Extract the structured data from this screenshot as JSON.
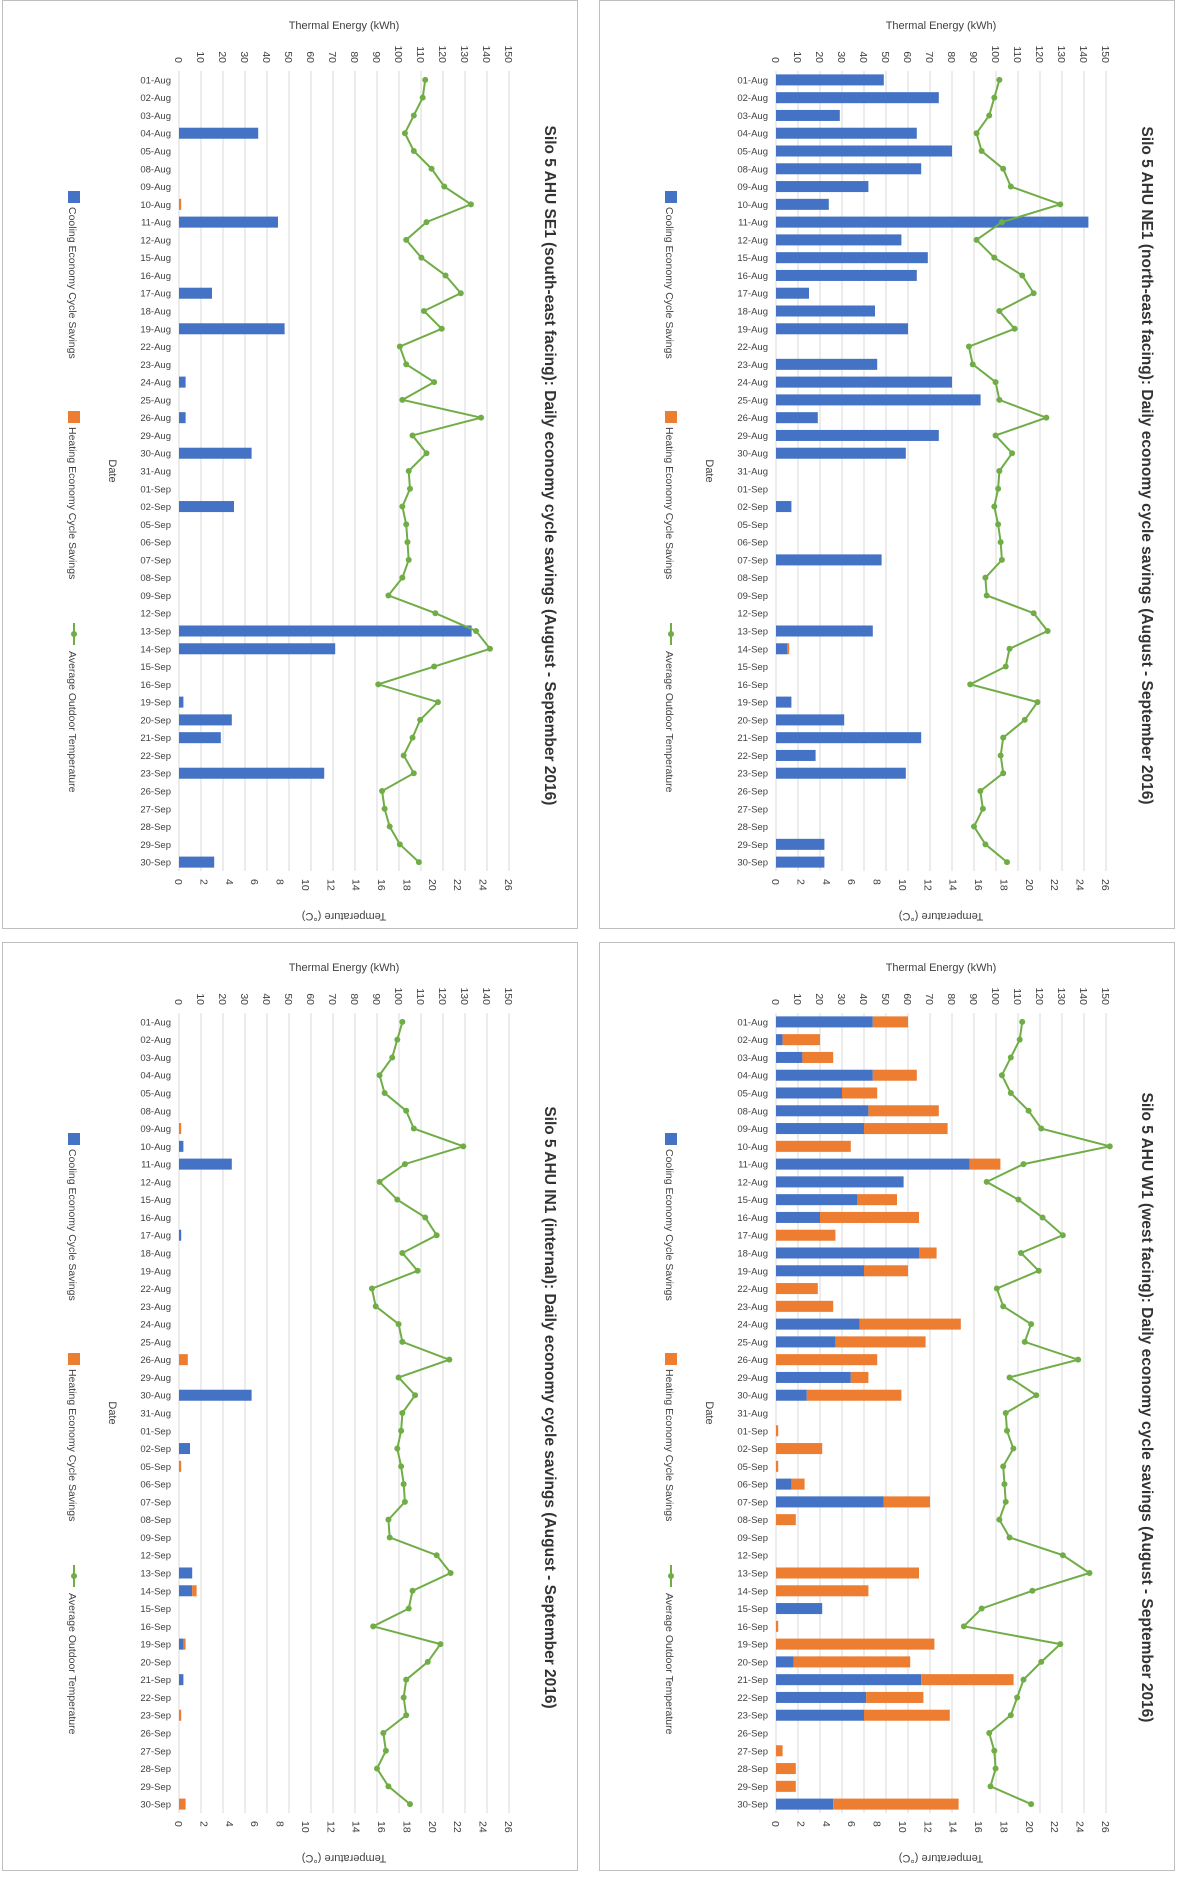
{
  "page": {
    "background": "#ffffff"
  },
  "colors": {
    "cooling": "#4472c4",
    "heating": "#ed7d31",
    "temperature": "#70ad47",
    "grid": "#d9d9d9",
    "text": "#404040"
  },
  "chart_data": [
    {
      "id": "in1",
      "type": "bar",
      "title": "Silo 5 AHU IN1 (internal): Daily economy cycle savings (August - September 2016)",
      "xlabel": "Date",
      "ylabel": "Thermal Energy (kWh)",
      "y2label": "Temperature (°C)",
      "ylim": [
        0,
        150
      ],
      "yticks": [
        "0",
        "10",
        "20",
        "30",
        "40",
        "50",
        "60",
        "70",
        "80",
        "90",
        "100",
        "110",
        "120",
        "130",
        "140",
        "150"
      ],
      "y2lim": [
        0,
        26
      ],
      "y2ticks": [
        "0",
        "2",
        "4",
        "6",
        "8",
        "10",
        "12",
        "14",
        "16",
        "18",
        "20",
        "22",
        "24",
        "26"
      ],
      "grid": true,
      "legend_position": "bottom",
      "categories": [
        "01-Aug",
        "02-Aug",
        "03-Aug",
        "04-Aug",
        "05-Aug",
        "08-Aug",
        "09-Aug",
        "10-Aug",
        "11-Aug",
        "12-Aug",
        "15-Aug",
        "16-Aug",
        "17-Aug",
        "18-Aug",
        "19-Aug",
        "22-Aug",
        "23-Aug",
        "24-Aug",
        "25-Aug",
        "26-Aug",
        "29-Aug",
        "30-Aug",
        "31-Aug",
        "01-Sep",
        "02-Sep",
        "05-Sep",
        "06-Sep",
        "07-Sep",
        "08-Sep",
        "09-Sep",
        "12-Sep",
        "13-Sep",
        "14-Sep",
        "15-Sep",
        "16-Sep",
        "19-Sep",
        "20-Sep",
        "21-Sep",
        "22-Sep",
        "23-Sep",
        "26-Sep",
        "27-Sep",
        "28-Sep",
        "29-Sep",
        "30-Sep"
      ],
      "series": [
        {
          "name": "Cooling Economy Cycle Savings",
          "kind": "bar",
          "values": [
            0,
            0,
            0,
            0,
            0,
            0,
            0,
            2,
            24,
            0,
            0,
            0,
            1,
            0,
            0,
            0,
            0,
            0,
            0,
            0,
            0,
            33,
            0,
            0,
            5,
            0,
            0,
            0,
            0,
            0,
            0,
            6,
            6,
            0,
            0,
            2,
            0,
            2,
            0,
            0,
            0,
            0,
            0,
            0,
            0
          ]
        },
        {
          "name": "Heating Economy Cycle Savings",
          "kind": "bar",
          "values": [
            0,
            0,
            0,
            0,
            0,
            0,
            1,
            0,
            0,
            0,
            0,
            0,
            0,
            0,
            0,
            0,
            0,
            0,
            0,
            4,
            0,
            0,
            0,
            0,
            0,
            1,
            0,
            0,
            0,
            0,
            0,
            0,
            2,
            0,
            0,
            1,
            0,
            0,
            0,
            1,
            0,
            0,
            0,
            0,
            3
          ]
        },
        {
          "name": "Average Outdoor Temperature",
          "kind": "line",
          "axis": "secondary",
          "values": [
            17.6,
            17.2,
            16.8,
            15.8,
            16.2,
            17.9,
            18.5,
            22.4,
            17.8,
            15.8,
            17.2,
            19.4,
            20.3,
            17.6,
            18.8,
            15.2,
            15.5,
            17.3,
            17.6,
            21.3,
            17.3,
            18.6,
            17.6,
            17.5,
            17.2,
            17.5,
            17.7,
            17.8,
            16.5,
            16.6,
            20.3,
            21.4,
            18.4,
            18.1,
            15.3,
            20.6,
            19.6,
            17.9,
            17.7,
            17.9,
            16.1,
            16.3,
            15.6,
            16.5,
            18.2
          ]
        }
      ]
    },
    {
      "id": "ne1",
      "type": "bar",
      "title": "Silo 5 AHU NE1 (north-east facing): Daily economy cycle savings (August - September 2016)",
      "xlabel": "Date",
      "ylabel": "Thermal Energy (kWh)",
      "y2label": "Temperature (°C)",
      "ylim": [
        0,
        150
      ],
      "yticks": [
        "0",
        "10",
        "20",
        "30",
        "40",
        "50",
        "60",
        "70",
        "80",
        "90",
        "100",
        "110",
        "120",
        "130",
        "140",
        "150"
      ],
      "y2lim": [
        0,
        26
      ],
      "y2ticks": [
        "0",
        "2",
        "4",
        "6",
        "8",
        "10",
        "12",
        "14",
        "16",
        "18",
        "20",
        "22",
        "24",
        "26"
      ],
      "grid": true,
      "legend_position": "bottom",
      "categories": [
        "01-Aug",
        "02-Aug",
        "03-Aug",
        "04-Aug",
        "05-Aug",
        "08-Aug",
        "09-Aug",
        "10-Aug",
        "11-Aug",
        "12-Aug",
        "15-Aug",
        "16-Aug",
        "17-Aug",
        "18-Aug",
        "19-Aug",
        "22-Aug",
        "23-Aug",
        "24-Aug",
        "25-Aug",
        "26-Aug",
        "29-Aug",
        "30-Aug",
        "31-Aug",
        "01-Sep",
        "02-Sep",
        "05-Sep",
        "06-Sep",
        "07-Sep",
        "08-Sep",
        "09-Sep",
        "12-Sep",
        "13-Sep",
        "14-Sep",
        "15-Sep",
        "16-Sep",
        "19-Sep",
        "20-Sep",
        "21-Sep",
        "22-Sep",
        "23-Sep",
        "26-Sep",
        "27-Sep",
        "28-Sep",
        "29-Sep",
        "30-Sep"
      ],
      "series": [
        {
          "name": "Cooling Economy Cycle Savings",
          "kind": "bar",
          "values": [
            49,
            74,
            29,
            64,
            80,
            66,
            42,
            24,
            142,
            57,
            69,
            64,
            15,
            45,
            60,
            0,
            46,
            80,
            93,
            19,
            74,
            59,
            0,
            0,
            7,
            0,
            0,
            48,
            0,
            0,
            0,
            44,
            5,
            0,
            0,
            7,
            31,
            66,
            18,
            59,
            0,
            0,
            0,
            22,
            22
          ]
        },
        {
          "name": "Heating Economy Cycle Savings",
          "kind": "bar",
          "values": [
            0,
            0,
            0,
            0,
            0,
            0,
            0,
            0,
            0,
            0,
            0,
            0,
            0,
            0,
            0,
            0,
            0,
            0,
            0,
            0,
            0,
            0,
            0,
            0,
            0,
            0,
            0,
            0,
            0,
            0,
            0,
            0,
            1,
            0,
            0,
            0,
            0,
            0,
            0,
            0,
            0,
            0,
            0,
            0,
            0
          ]
        },
        {
          "name": "Average Outdoor Temperature",
          "kind": "line",
          "axis": "secondary",
          "values": [
            17.6,
            17.2,
            16.8,
            15.8,
            16.2,
            17.9,
            18.5,
            22.4,
            17.8,
            15.8,
            17.2,
            19.4,
            20.3,
            17.6,
            18.8,
            15.2,
            15.5,
            17.3,
            17.6,
            21.3,
            17.3,
            18.6,
            17.6,
            17.5,
            17.2,
            17.5,
            17.7,
            17.8,
            16.5,
            16.6,
            20.3,
            21.4,
            18.4,
            18.1,
            15.3,
            20.6,
            19.6,
            17.9,
            17.7,
            17.9,
            16.1,
            16.3,
            15.6,
            16.5,
            18.2
          ]
        }
      ]
    },
    {
      "id": "w1",
      "type": "bar",
      "title": "Silo 5 AHU W1 (west facing): Daily economy cycle savings (August - September 2016)",
      "xlabel": "Date",
      "ylabel": "Thermal Energy (kWh)",
      "y2label": "Temperature (°C)",
      "ylim": [
        0,
        150
      ],
      "yticks": [
        "0",
        "10",
        "20",
        "30",
        "40",
        "50",
        "60",
        "70",
        "80",
        "90",
        "100",
        "110",
        "120",
        "130",
        "140",
        "150"
      ],
      "y2lim": [
        0,
        26
      ],
      "y2ticks": [
        "0",
        "2",
        "4",
        "6",
        "8",
        "10",
        "12",
        "14",
        "16",
        "18",
        "20",
        "22",
        "24",
        "26"
      ],
      "grid": true,
      "legend_position": "bottom",
      "categories": [
        "01-Aug",
        "02-Aug",
        "03-Aug",
        "04-Aug",
        "05-Aug",
        "08-Aug",
        "09-Aug",
        "10-Aug",
        "11-Aug",
        "12-Aug",
        "15-Aug",
        "16-Aug",
        "17-Aug",
        "18-Aug",
        "19-Aug",
        "22-Aug",
        "23-Aug",
        "24-Aug",
        "25-Aug",
        "26-Aug",
        "29-Aug",
        "30-Aug",
        "31-Aug",
        "01-Sep",
        "02-Sep",
        "05-Sep",
        "06-Sep",
        "07-Sep",
        "08-Sep",
        "09-Sep",
        "12-Sep",
        "13-Sep",
        "14-Sep",
        "15-Sep",
        "16-Sep",
        "19-Sep",
        "20-Sep",
        "21-Sep",
        "22-Sep",
        "23-Sep",
        "26-Sep",
        "27-Sep",
        "28-Sep",
        "29-Sep",
        "30-Sep"
      ],
      "series": [
        {
          "name": "Cooling Economy Cycle Savings",
          "kind": "bar",
          "values": [
            44,
            3,
            12,
            44,
            30,
            42,
            40,
            0,
            88,
            58,
            37,
            20,
            0,
            65,
            40,
            0,
            0,
            38,
            27,
            0,
            34,
            14,
            0,
            0,
            0,
            0,
            7,
            49,
            0,
            0,
            0,
            0,
            0,
            21,
            0,
            0,
            8,
            66,
            41,
            40,
            0,
            0,
            0,
            0,
            26
          ]
        },
        {
          "name": "Heating Economy Cycle Savings",
          "kind": "bar",
          "values": [
            16,
            17,
            14,
            20,
            16,
            32,
            38,
            34,
            14,
            0,
            18,
            45,
            27,
            8,
            20,
            19,
            26,
            46,
            41,
            46,
            8,
            43,
            0,
            1,
            21,
            1,
            6,
            21,
            9,
            0,
            0,
            65,
            42,
            0,
            1,
            72,
            53,
            42,
            26,
            39,
            0,
            3,
            9,
            9,
            57
          ]
        },
        {
          "name": "Average Outdoor Temperature",
          "kind": "line",
          "axis": "secondary",
          "values": [
            19.4,
            19.2,
            18.5,
            17.8,
            18.5,
            19.9,
            20.9,
            26.3,
            19.5,
            16.6,
            19.1,
            21.0,
            22.6,
            19.3,
            20.7,
            17.4,
            17.9,
            20.1,
            19.6,
            23.8,
            18.4,
            20.5,
            18.1,
            18.2,
            18.7,
            17.9,
            18.0,
            18.1,
            17.6,
            18.4,
            22.6,
            24.7,
            20.2,
            16.2,
            14.8,
            22.4,
            20.9,
            19.5,
            19.0,
            18.5,
            16.8,
            17.2,
            17.3,
            16.9,
            20.1
          ]
        }
      ]
    },
    {
      "id": "se1",
      "type": "bar",
      "title": "Silo 5 AHU SE1 (south-east facing): Daily economy cycle savings (August - September 2016)",
      "xlabel": "Date",
      "ylabel": "Thermal Energy (kWh)",
      "y2label": "Temperature (°C)",
      "ylim": [
        0,
        150
      ],
      "yticks": [
        "0",
        "10",
        "20",
        "30",
        "40",
        "50",
        "60",
        "70",
        "80",
        "90",
        "100",
        "110",
        "120",
        "130",
        "140",
        "150"
      ],
      "y2lim": [
        0,
        26
      ],
      "y2ticks": [
        "0",
        "2",
        "4",
        "6",
        "8",
        "10",
        "12",
        "14",
        "16",
        "18",
        "20",
        "22",
        "24",
        "26"
      ],
      "grid": true,
      "legend_position": "bottom",
      "categories": [
        "01-Aug",
        "02-Aug",
        "03-Aug",
        "04-Aug",
        "05-Aug",
        "08-Aug",
        "09-Aug",
        "10-Aug",
        "11-Aug",
        "12-Aug",
        "15-Aug",
        "16-Aug",
        "17-Aug",
        "18-Aug",
        "19-Aug",
        "22-Aug",
        "23-Aug",
        "24-Aug",
        "25-Aug",
        "26-Aug",
        "29-Aug",
        "30-Aug",
        "31-Aug",
        "01-Sep",
        "02-Sep",
        "05-Sep",
        "06-Sep",
        "07-Sep",
        "08-Sep",
        "09-Sep",
        "12-Sep",
        "13-Sep",
        "14-Sep",
        "15-Sep",
        "16-Sep",
        "19-Sep",
        "20-Sep",
        "21-Sep",
        "22-Sep",
        "23-Sep",
        "26-Sep",
        "27-Sep",
        "28-Sep",
        "29-Sep",
        "30-Sep"
      ],
      "series": [
        {
          "name": "Cooling Economy Cycle Savings",
          "kind": "bar",
          "values": [
            0,
            0,
            0,
            36,
            0,
            0,
            0,
            0,
            45,
            0,
            0,
            0,
            15,
            0,
            48,
            0,
            0,
            3,
            0,
            3,
            0,
            33,
            0,
            0,
            25,
            0,
            0,
            0,
            0,
            0,
            0,
            133,
            71,
            0,
            0,
            2,
            24,
            19,
            0,
            66,
            0,
            0,
            0,
            0,
            16
          ]
        },
        {
          "name": "Heating Economy Cycle Savings",
          "kind": "bar",
          "values": [
            0,
            0,
            0,
            0,
            0,
            0,
            0,
            1,
            0,
            0,
            0,
            0,
            0,
            0,
            0,
            0,
            0,
            0,
            0,
            0,
            0,
            0,
            0,
            0,
            0,
            0,
            0,
            0,
            0,
            0,
            0,
            0,
            0,
            0,
            0,
            0,
            0,
            0,
            0,
            0,
            0,
            0,
            0,
            0,
            0
          ]
        },
        {
          "name": "Average Outdoor Temperature",
          "kind": "line",
          "axis": "secondary",
          "values": [
            19.4,
            19.2,
            18.5,
            17.8,
            18.5,
            19.9,
            20.9,
            23.0,
            19.5,
            17.9,
            19.1,
            21.0,
            22.2,
            19.3,
            20.7,
            17.4,
            17.9,
            20.1,
            17.6,
            23.8,
            18.4,
            19.5,
            18.1,
            18.2,
            17.6,
            17.9,
            18.0,
            18.1,
            17.6,
            16.5,
            20.2,
            23.4,
            24.5,
            20.1,
            15.7,
            20.4,
            19.0,
            18.4,
            17.7,
            18.5,
            16.0,
            16.2,
            16.6,
            17.4,
            18.9
          ]
        }
      ]
    }
  ]
}
